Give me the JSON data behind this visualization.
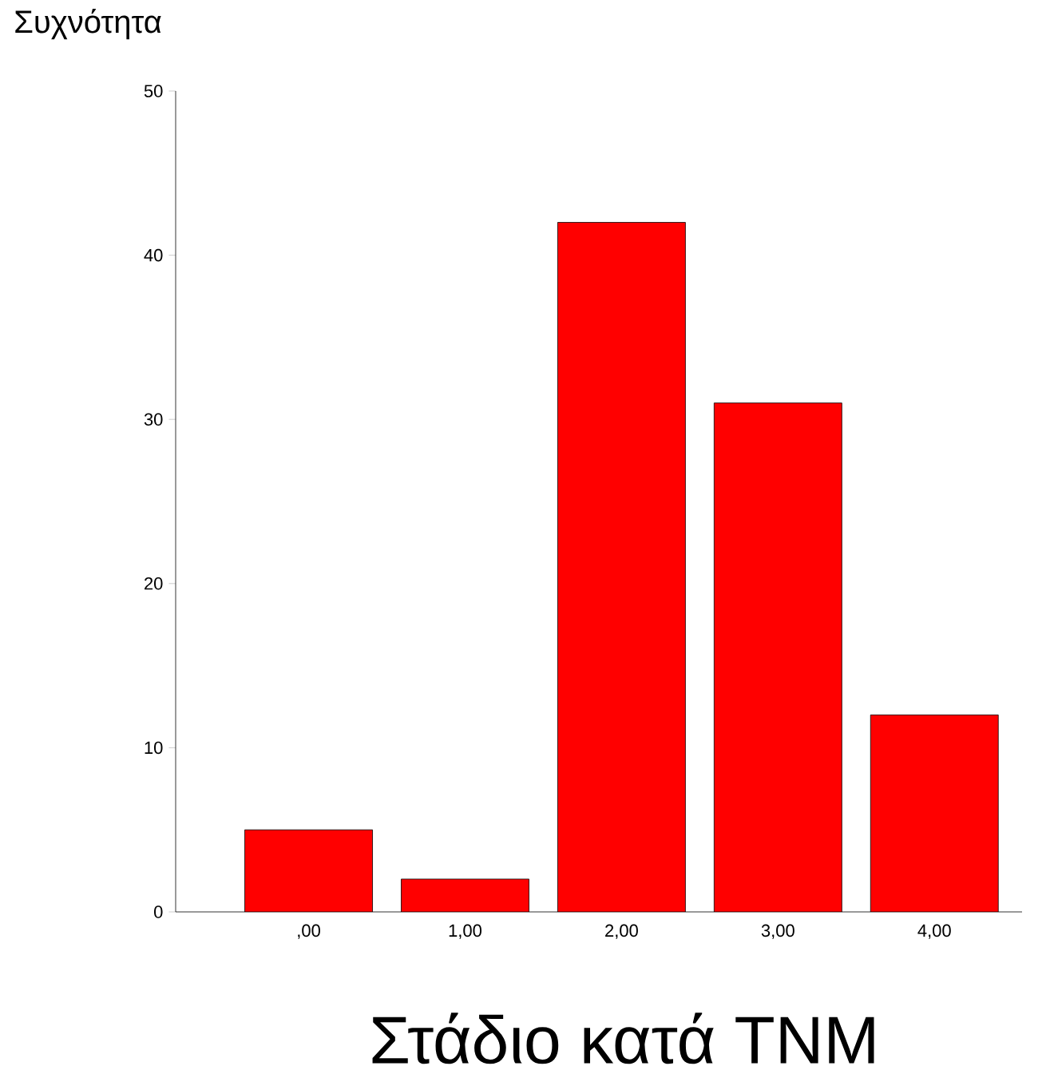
{
  "chart_data": {
    "type": "bar",
    "xlabel": "Στάδιο κατά TNM",
    "ylabel": "Συχνότητα",
    "categories": [
      ",00",
      "1,00",
      "2,00",
      "3,00",
      "4,00"
    ],
    "values": [
      5,
      2,
      42,
      31,
      12
    ],
    "color": "#ff0000",
    "ylim": [
      0,
      50
    ],
    "yticks": [
      0,
      10,
      20,
      30,
      40,
      50
    ],
    "grid": false
  }
}
